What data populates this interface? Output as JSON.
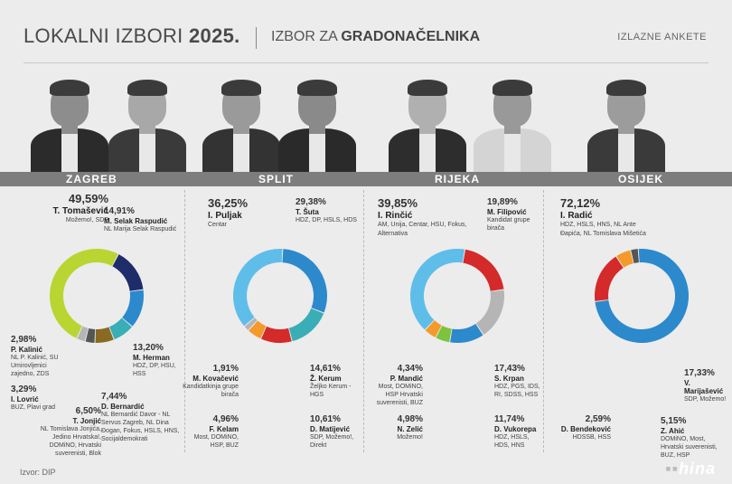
{
  "header": {
    "title_light": "LOKALNI IZBORI",
    "title_bold": "2025.",
    "subtitle_light": "IZBOR ZA",
    "subtitle_bold": "GRADONAČELNIKA",
    "note": "IZLAZNE ANKETE"
  },
  "source": "Izvor: DIP",
  "logo": "hina",
  "colors": {
    "lime": "#b9d532",
    "navy": "#1f2c6a",
    "blue": "#2c89cc",
    "teal": "#39aeb6",
    "olive": "#8a6a22",
    "dgray": "#555555",
    "lgray": "#b5b5b5",
    "sky": "#5fbde9",
    "orange": "#f39a2b",
    "red": "#d42a2a",
    "green": "#7ec23f"
  },
  "chart_data": [
    {
      "type": "pie",
      "title": "ZAGREB",
      "slices": [
        {
          "name": "T. Tomašević",
          "value": 49.59,
          "label": "49,59%",
          "info": "Možemo!, SDP",
          "color": "#b9d532"
        },
        {
          "name": "M. Selak Raspudić",
          "value": 14.91,
          "label": "14,91%",
          "info": "NL Marija Selak Raspudić",
          "color": "#1f2c6a"
        },
        {
          "name": "M. Herman",
          "value": 13.2,
          "label": "13,20%",
          "info": "HDZ, DP, HSU, HSS",
          "color": "#2c89cc"
        },
        {
          "name": "D. Bernardić",
          "value": 7.44,
          "label": "7,44%",
          "info": "NL Bernardić Davor - NL Servus Zagreb, NL Dina Đogan, Fokus, HSLS, HNS, Socijaldemokrati",
          "color": "#39aeb6"
        },
        {
          "name": "T. Jonjić",
          "value": 6.5,
          "label": "6,50%",
          "info": "NL Tomislava Jonjića, Jedino Hrvatska!, DOMiNO, Hrvatski suverenisti, Blok",
          "color": "#8a6a22"
        },
        {
          "name": "I. Lovrić",
          "value": 3.29,
          "label": "3,29%",
          "info": "BUZ, Plavi grad",
          "color": "#555555"
        },
        {
          "name": "P. Kalinić",
          "value": 2.98,
          "label": "2,98%",
          "info": "NL P. Kalinić, SU Umirovljenici zajedno, ZDS",
          "color": "#b5b5b5"
        }
      ]
    },
    {
      "type": "pie",
      "title": "SPLIT",
      "slices": [
        {
          "name": "I. Puljak",
          "value": 36.25,
          "label": "36,25%",
          "info": "Centar",
          "color": "#5fbde9"
        },
        {
          "name": "T. Šuta",
          "value": 29.38,
          "label": "29,38%",
          "info": "HDZ, DP, HSLS, HDS",
          "color": "#2c89cc"
        },
        {
          "name": "Ž. Kerum",
          "value": 14.61,
          "label": "14,61%",
          "info": "Željko Kerum - HGS",
          "color": "#39aeb6"
        },
        {
          "name": "D. Matijević",
          "value": 10.61,
          "label": "10,61%",
          "info": "SDP, Možemo!, Direkt",
          "color": "#d42a2a"
        },
        {
          "name": "F. Kelam",
          "value": 4.96,
          "label": "4,96%",
          "info": "Most, DOMiNO, HSP, BUZ",
          "color": "#f39a2b"
        },
        {
          "name": "M. Kovačević",
          "value": 1.91,
          "label": "1,91%",
          "info": "Kandidatkinja grupe birača",
          "color": "#b5b5b5"
        }
      ]
    },
    {
      "type": "pie",
      "title": "RIJEKA",
      "slices": [
        {
          "name": "I. Rinčić",
          "value": 39.85,
          "label": "39,85%",
          "info": "AM, Unija, Centar, HSU, Fokus, Alternativa",
          "color": "#5fbde9"
        },
        {
          "name": "M. Filipović",
          "value": 19.89,
          "label": "19,89%",
          "info": "Kandidat grupe birača",
          "color": "#d42a2a"
        },
        {
          "name": "S. Krpan",
          "value": 17.43,
          "label": "17,43%",
          "info": "HDZ, PGS, IDS, RI, SDSS, HSS",
          "color": "#b5b5b5"
        },
        {
          "name": "D. Vukorepa",
          "value": 11.74,
          "label": "11,74%",
          "info": "HDZ, HSLS, HDS, HNS",
          "color": "#2c89cc"
        },
        {
          "name": "N. Zelić",
          "value": 4.98,
          "label": "4,98%",
          "info": "Možemo!",
          "color": "#7ec23f"
        },
        {
          "name": "P. Mandić",
          "value": 4.34,
          "label": "4,34%",
          "info": "Most, DOMiNO, HSP Hrvatski suverenisti, BUZ",
          "color": "#f39a2b"
        }
      ]
    },
    {
      "type": "pie",
      "title": "OSIJEK",
      "slices": [
        {
          "name": "I. Radić",
          "value": 72.12,
          "label": "72,12%",
          "info": "HDZ, HSLS, HNS, NL Ante Đapića, NL Tomislava Mišetića",
          "color": "#2c89cc"
        },
        {
          "name": "V. Marijašević",
          "value": 17.33,
          "label": "17,33%",
          "info": "SDP, Možemo!",
          "color": "#d42a2a"
        },
        {
          "name": "Z. Ahić",
          "value": 5.15,
          "label": "5,15%",
          "info": "DOMiNO, Most, Hrvatski suverenisti, BUZ, HSP",
          "color": "#f39a2b"
        },
        {
          "name": "D. Bendeković",
          "value": 2.59,
          "label": "2,59%",
          "info": "HDSSB, HSS",
          "color": "#555555"
        }
      ]
    }
  ]
}
